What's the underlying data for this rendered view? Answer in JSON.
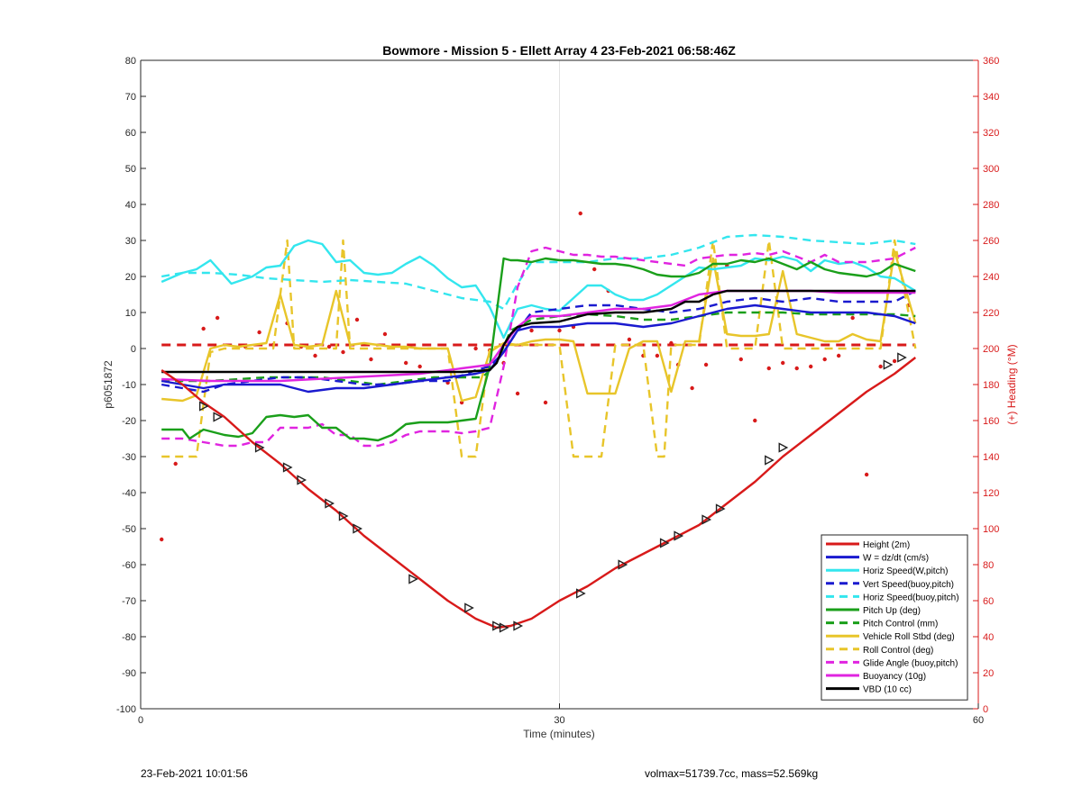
{
  "footer": {
    "timestamp": "23-Feb-2021 10:01:56",
    "summary": "volmax=51739.7cc, mass=52.569kg"
  },
  "chart_data": {
    "type": "line",
    "title": "Bowmore - Mission 5 - Ellett Array 4 23-Feb-2021 06:58:46Z",
    "xlabel": "Time (minutes)",
    "ylabel": "p6051872",
    "y2label": "(+) Heading (°M)",
    "xlim": [
      0,
      60
    ],
    "ylim": [
      -100,
      80
    ],
    "y2lim": [
      0,
      360
    ],
    "xticks": [
      0,
      30,
      60
    ],
    "yticks": [
      80,
      70,
      60,
      50,
      40,
      30,
      20,
      10,
      0,
      -10,
      -20,
      -30,
      -40,
      -50,
      -60,
      -70,
      -80,
      -90,
      -100
    ],
    "y2ticks": [
      360,
      340,
      320,
      300,
      280,
      260,
      240,
      220,
      200,
      180,
      160,
      140,
      120,
      100,
      80,
      60,
      40,
      20,
      0
    ],
    "grid": "x=30 only",
    "legend_position": "bottom-right",
    "series": [
      {
        "name": "Height (2m)",
        "color": "#d81a1a",
        "style": "solid",
        "x": [
          1.5,
          3,
          4.5,
          6,
          8,
          10,
          12,
          14,
          16,
          18,
          20,
          22,
          24,
          25.5,
          26.5,
          28,
          30,
          32,
          34,
          36,
          38,
          40,
          42,
          44,
          46,
          48,
          50,
          52,
          54,
          55.5
        ],
        "y": [
          -6,
          -10,
          -15,
          -19,
          -26,
          -32,
          -39,
          -45,
          -52,
          -58,
          -64,
          -70,
          -75,
          -77.5,
          -77,
          -75,
          -70,
          -66,
          -61,
          -57,
          -53,
          -49,
          -43,
          -37,
          -30,
          -24,
          -18,
          -12,
          -7,
          -2.5
        ]
      },
      {
        "name": "W = dz/dt (cm/s)",
        "color": "#1a1acf",
        "style": "solid",
        "x": [
          1.5,
          3,
          4.5,
          6,
          8,
          10,
          11,
          12,
          14,
          16,
          18,
          20,
          22,
          24,
          25,
          26,
          27,
          28,
          30,
          32,
          34,
          36,
          38,
          40,
          42,
          44,
          46,
          48,
          50,
          52,
          54,
          55.5
        ],
        "y": [
          -9,
          -10,
          -11,
          -10,
          -10,
          -10,
          -11,
          -12,
          -11,
          -11,
          -10,
          -9,
          -8,
          -7,
          -6,
          -1,
          5,
          6,
          6,
          7,
          7,
          6,
          7,
          9,
          11,
          12,
          11,
          10,
          10,
          10,
          9,
          7
        ]
      },
      {
        "name": "Horiz Speed(W,pitch)",
        "color": "#33e6ee",
        "style": "solid",
        "x": [
          1.5,
          3,
          4,
          5,
          6.5,
          8,
          9,
          10,
          11,
          12,
          13,
          14,
          15,
          16,
          17,
          18,
          19,
          20,
          21,
          22,
          23,
          24,
          25,
          26,
          27,
          28,
          29,
          30,
          31,
          32,
          33,
          34,
          35,
          36,
          37,
          38,
          39,
          40,
          41,
          42,
          43,
          44,
          45,
          46,
          47,
          48,
          49,
          50,
          51,
          52,
          53,
          54,
          55.5
        ],
        "y": [
          18.5,
          21,
          22,
          24.5,
          18,
          20,
          22.5,
          23,
          28.5,
          30,
          29,
          24,
          24.5,
          21,
          20.5,
          21,
          23.5,
          25.5,
          23,
          19.5,
          17,
          17.5,
          11.5,
          3,
          11,
          12,
          11,
          10.5,
          14,
          17.5,
          17.5,
          15,
          13.5,
          13.5,
          15,
          17.5,
          20,
          22.5,
          22,
          22.5,
          23,
          25,
          24.5,
          25.5,
          24.5,
          21.5,
          24.5,
          23.5,
          24,
          22.5,
          20,
          19.5,
          16
        ]
      },
      {
        "name": "Vert Speed(buoy,pitch)",
        "color": "#1a1acf",
        "style": "dashed",
        "x": [
          1.5,
          3,
          4.5,
          6,
          8,
          10,
          12,
          14,
          16,
          18,
          20,
          22,
          24,
          25,
          26,
          27,
          28,
          30,
          32,
          34,
          36,
          38,
          40,
          42,
          44,
          46,
          48,
          50,
          52,
          54,
          55.5
        ],
        "y": [
          -10,
          -11,
          -12,
          -10,
          -9,
          -8,
          -8,
          -9,
          -10,
          -10,
          -9,
          -9,
          -6,
          -5,
          -1,
          5,
          10,
          11,
          12,
          12,
          11,
          10,
          11,
          13,
          14,
          13,
          14,
          13,
          13,
          13,
          16
        ]
      },
      {
        "name": "Horiz Speed(buoy,pitch)",
        "color": "#33e6ee",
        "style": "dashed",
        "x": [
          1.5,
          3,
          5,
          7,
          9,
          11,
          13,
          15,
          17,
          19,
          21,
          23,
          25,
          26,
          27,
          28,
          30,
          32,
          34,
          36,
          38,
          40,
          42,
          44,
          46,
          48,
          50,
          52,
          54,
          55.5
        ],
        "y": [
          20,
          21,
          21,
          20.5,
          19.5,
          19,
          18.5,
          19,
          18.5,
          18,
          16,
          14,
          13,
          11,
          18,
          24,
          24,
          24,
          25,
          25,
          26,
          28,
          31,
          31.5,
          31,
          30,
          29.5,
          29,
          30,
          29
        ]
      },
      {
        "name": "Pitch Up (deg)",
        "color": "#1a9f1a",
        "style": "solid",
        "x": [
          1.5,
          3,
          3.5,
          4.5,
          6,
          7,
          8,
          9,
          10,
          11,
          12,
          13,
          14,
          15,
          16,
          17,
          18,
          19,
          20,
          21,
          22,
          23,
          24,
          25,
          26,
          26.5,
          27,
          28,
          29,
          30,
          31,
          32,
          33,
          34,
          35,
          36,
          37,
          38,
          39,
          40,
          41,
          42,
          43,
          44,
          45,
          46,
          47,
          48,
          49,
          50,
          51,
          52,
          53,
          54,
          55.5
        ],
        "y": [
          -22.5,
          -22.5,
          -25,
          -22.5,
          -24,
          -24.5,
          -23.5,
          -19,
          -18.5,
          -19,
          -18.5,
          -22,
          -22,
          -25,
          -25,
          -25.5,
          -24,
          -21,
          -20.5,
          -20.5,
          -20.5,
          -20,
          -19.5,
          -5,
          25,
          24.5,
          24.5,
          24,
          25,
          24.5,
          24.5,
          24,
          23.5,
          23.5,
          23,
          22,
          20.5,
          20,
          20,
          21,
          23.5,
          23.5,
          24.5,
          24,
          25,
          23.5,
          22,
          24,
          22,
          21,
          20.5,
          20,
          21,
          23.5,
          21.5
        ]
      },
      {
        "name": "Pitch Control (mm)",
        "color": "#1a9f1a",
        "style": "dashed",
        "x": [
          1.5,
          3,
          5,
          7,
          9,
          11,
          13,
          15,
          17,
          19,
          21,
          23,
          24.5,
          25.5,
          26.5,
          28,
          30,
          32,
          34,
          36,
          38,
          40,
          42,
          44,
          46,
          48,
          50,
          52,
          54,
          55.5
        ],
        "y": [
          -9,
          -9,
          -9,
          -8.5,
          -8,
          -8,
          -8,
          -9,
          -10,
          -9,
          -8,
          -8,
          -8,
          -4,
          5,
          8,
          9,
          9.5,
          9,
          8,
          8,
          9,
          10,
          10,
          10,
          9.5,
          9.5,
          9.5,
          9.5,
          9
        ]
      },
      {
        "name": "Vehicle Roll Stbd (deg)",
        "color": "#e8c52a",
        "style": "solid",
        "x": [
          1.5,
          3,
          4,
          5,
          6,
          7,
          8,
          9,
          10,
          11,
          12,
          13,
          14,
          15,
          16,
          17,
          18,
          19,
          20,
          21,
          22,
          23,
          24,
          25,
          26,
          27,
          28,
          29,
          30,
          31,
          32,
          33,
          34,
          35,
          36,
          37,
          38,
          39,
          40,
          41,
          42,
          43,
          44,
          45,
          46,
          47,
          48,
          49,
          50,
          51,
          52,
          53,
          54,
          55.5
        ],
        "y": [
          -14,
          -14.5,
          -13,
          0,
          1,
          0.5,
          1,
          1.5,
          15,
          1,
          0.5,
          1,
          16,
          1,
          1.5,
          1,
          0.5,
          0.5,
          0,
          0,
          0,
          -14.5,
          -13.5,
          -1,
          1.5,
          1,
          2,
          2.5,
          2.5,
          2,
          -12.5,
          -12.5,
          -12.5,
          0,
          2,
          2,
          -12,
          2,
          2,
          25,
          4,
          3.5,
          3.5,
          4,
          21.5,
          4,
          3,
          2,
          2,
          4,
          2.5,
          2,
          27,
          7
        ]
      },
      {
        "name": "Roll Control (deg)",
        "color": "#e8c52a",
        "style": "dashed",
        "x": [
          1.5,
          3,
          4,
          5,
          6,
          8,
          9.5,
          10.5,
          11,
          12,
          13,
          14,
          14.5,
          15,
          16,
          18,
          20,
          22,
          23,
          24,
          25,
          26,
          28,
          30,
          31,
          32,
          33,
          34,
          35,
          36,
          37,
          37.5,
          38,
          39,
          40,
          41,
          42,
          44,
          45,
          46,
          47,
          48,
          50,
          52,
          53,
          54,
          55.5
        ],
        "y": [
          -30,
          -30,
          -30,
          -1,
          0,
          0,
          0,
          30,
          0,
          0,
          0,
          0,
          30,
          0,
          0,
          0,
          0,
          0,
          -30,
          -30,
          0,
          1,
          1,
          1,
          -30,
          -30,
          -30,
          1,
          1,
          1,
          -30,
          -30,
          1,
          1,
          1,
          30,
          0,
          0,
          30,
          0,
          0,
          0,
          0,
          0,
          0,
          30,
          0
        ]
      },
      {
        "name": "Glide Angle (buoy,pitch)",
        "color": "#e024e0",
        "style": "dashed",
        "x": [
          1.5,
          3,
          4.5,
          6,
          7,
          8,
          9,
          10,
          11,
          12,
          13,
          14,
          15,
          16,
          17,
          18,
          19,
          20,
          21,
          22,
          23,
          24,
          25,
          26,
          27,
          28,
          29,
          30,
          31,
          32,
          33,
          34,
          35,
          36,
          37,
          38,
          39,
          40,
          41,
          42,
          43,
          44,
          45,
          46,
          47,
          48,
          49,
          50,
          51,
          52,
          53,
          54,
          55.5
        ],
        "y": [
          -25,
          -25,
          -26,
          -27,
          -27,
          -26,
          -26,
          -22,
          -22,
          -22,
          -21,
          -24,
          -24,
          -27,
          -27,
          -26,
          -24,
          -23,
          -23,
          -23,
          -23.5,
          -23,
          -22,
          -5,
          17,
          27,
          28,
          27,
          26,
          26,
          25.5,
          25.5,
          25,
          24.5,
          24,
          23.5,
          23,
          25,
          25.5,
          26,
          26,
          26.5,
          26,
          27,
          25.5,
          24,
          26,
          24,
          24,
          24,
          24.5,
          25,
          28
        ]
      },
      {
        "name": "Buoyancy (10g)",
        "color": "#e024e0",
        "style": "solid",
        "x": [
          1.5,
          5,
          10,
          15,
          20,
          23,
          25,
          26,
          27,
          28,
          30,
          32,
          34,
          36,
          38,
          40,
          42,
          44,
          46,
          48,
          50,
          52,
          54,
          55.5
        ],
        "y": [
          -8.5,
          -9,
          -9,
          -8,
          -7,
          -5.5,
          -4.5,
          1,
          6,
          9,
          9,
          10,
          11,
          11,
          12,
          15,
          16,
          16,
          16,
          16,
          15.5,
          15.5,
          15.5,
          15.5
        ]
      },
      {
        "name": "VBD (10 cc)",
        "color": "#000000",
        "style": "solid",
        "x": [
          1.5,
          5,
          10,
          15,
          20,
          23,
          25,
          25.5,
          26,
          26.5,
          27,
          28,
          30,
          32,
          34,
          36,
          38,
          39,
          40,
          41,
          42,
          44,
          46,
          48,
          50,
          52,
          54,
          55.5
        ],
        "y": [
          -6.5,
          -6.5,
          -6.5,
          -6.5,
          -6.5,
          -6.5,
          -6,
          -4,
          1,
          4,
          6,
          7,
          7.5,
          9.5,
          10,
          10,
          11,
          13,
          13,
          15,
          16,
          16,
          16,
          16,
          16,
          16,
          16,
          16
        ]
      }
    ],
    "reference_line": {
      "name": "",
      "color": "#d81a1a",
      "style": "dashed",
      "y": 1
    },
    "height_markers": {
      "x": [
        4.5,
        5.5,
        8.5,
        10.5,
        11.5,
        13.5,
        14.5,
        15.5,
        19.5,
        23.5,
        25.5,
        26,
        27,
        31.5,
        34.5,
        37.5,
        38.5,
        40.5,
        41.5,
        45,
        46,
        53.5,
        54.5
      ],
      "y": [
        -16,
        -19,
        -27.5,
        -33,
        -36.5,
        -43,
        -46.5,
        -50,
        -64,
        -72,
        -77,
        -77.5,
        -77,
        -68,
        -60,
        -54,
        -52,
        -47.5,
        -44.5,
        -31,
        -27.5,
        -4.5,
        -2.5
      ]
    },
    "heading_points": {
      "color": "#d81a1a",
      "x": [
        1.5,
        2.5,
        4.5,
        5.5,
        7.5,
        8.5,
        9.5,
        10.5,
        11.5,
        12.5,
        13.5,
        14.5,
        15.5,
        16.5,
        17.5,
        19,
        20,
        22,
        23,
        24,
        25,
        26,
        27,
        28,
        29,
        30,
        31,
        31.5,
        32.5,
        33.5,
        35,
        36,
        37,
        38,
        38.5,
        39.5,
        40.5,
        42,
        43,
        44,
        45,
        46,
        47,
        48,
        49,
        50,
        51,
        52,
        53,
        54,
        55
      ],
      "y": [
        94,
        136,
        211,
        217,
        201,
        209,
        202,
        214,
        201,
        196,
        201,
        198,
        216,
        194,
        208,
        192,
        190,
        181,
        170,
        200,
        199,
        192,
        175,
        210,
        170,
        210,
        212,
        275,
        244,
        232,
        205,
        196,
        196,
        203,
        191,
        178,
        191,
        246,
        194,
        160,
        189,
        192,
        189,
        190,
        194,
        196,
        217,
        130,
        190,
        193,
        224
      ]
    }
  }
}
